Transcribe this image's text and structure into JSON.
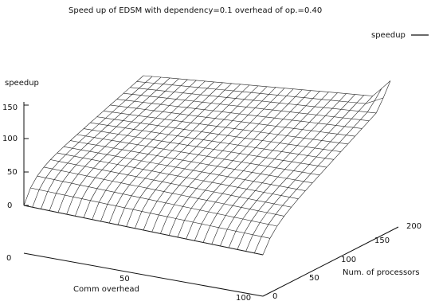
{
  "chart_data": {
    "type": "surface",
    "title": "Speed up of EDSM with dependency=0.1 overhead of op.=0.40",
    "legend": {
      "entries": [
        {
          "label": "speedup",
          "style": "line"
        }
      ],
      "position": "top-right"
    },
    "zlabel": "speedup",
    "xlabel": "Comm overhead",
    "ylabel": "Num. of processors",
    "zlim": [
      0,
      150
    ],
    "xlim": [
      0,
      100
    ],
    "ylim": [
      0,
      200
    ],
    "z_ticks": [
      "0",
      "50",
      "100",
      "150"
    ],
    "x_ticks": [
      "0",
      "50",
      "100"
    ],
    "y_ticks": [
      "0",
      "50",
      "100",
      "150",
      "200"
    ],
    "grid": false,
    "surface_description": "Speedup rises with number of processors and decreases slightly with comm overhead",
    "samples": [
      {
        "comm_overhead": 0,
        "processors": 0,
        "speedup": 0
      },
      {
        "comm_overhead": 0,
        "processors": 200,
        "speedup": 155
      },
      {
        "comm_overhead": 100,
        "processors": 0,
        "speedup": 0
      },
      {
        "comm_overhead": 100,
        "processors": 200,
        "speedup": 140
      }
    ]
  }
}
